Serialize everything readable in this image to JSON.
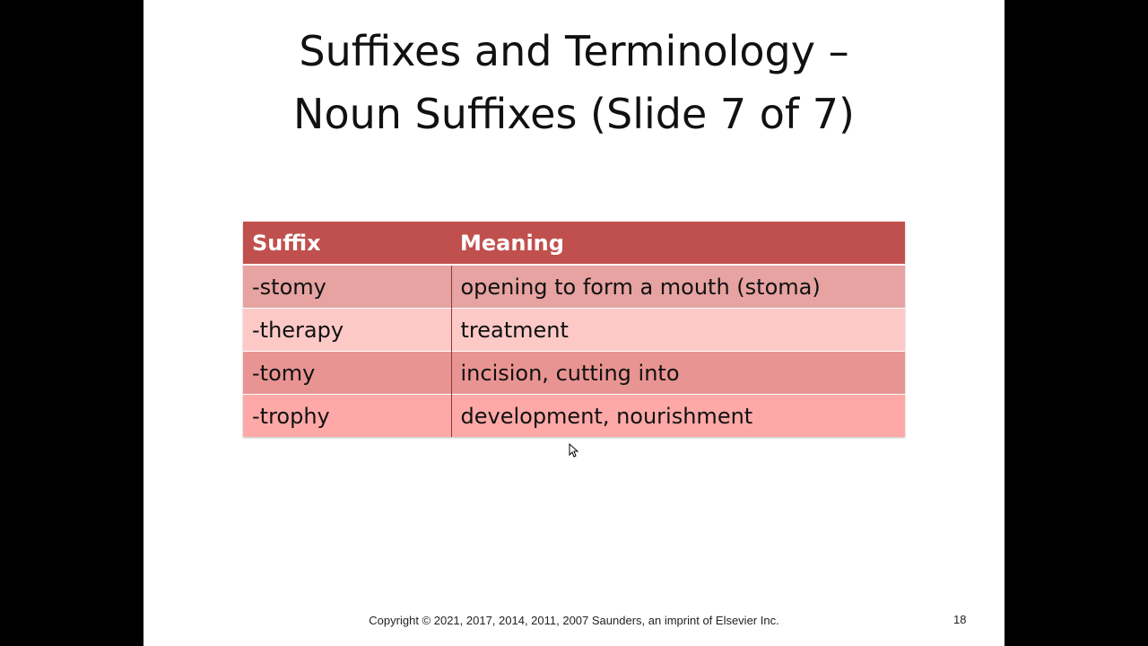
{
  "slide": {
    "title_line1": "Suffixes and Terminology –",
    "title_line2": "Noun Suffixes (Slide 7 of 7)",
    "table": {
      "columns": [
        "Suffix",
        "Meaning"
      ],
      "rows": [
        [
          "-stomy",
          "opening to form a mouth (stoma)"
        ],
        [
          "-therapy",
          "treatment"
        ],
        [
          "-tomy",
          "incision, cutting into"
        ],
        [
          "-trophy",
          "development, nourishment"
        ]
      ]
    },
    "footer": "Copyright ©  2021, 2017, 2014, 2011, 2007 Saunders, an imprint of Elsevier Inc.",
    "slide_number": "18"
  },
  "colors": {
    "header": "#c0504d",
    "row_dark": "#e6a3a1",
    "row_light": "#fcc9c7"
  },
  "icons": {
    "cursor": "mouse-pointer-icon"
  }
}
